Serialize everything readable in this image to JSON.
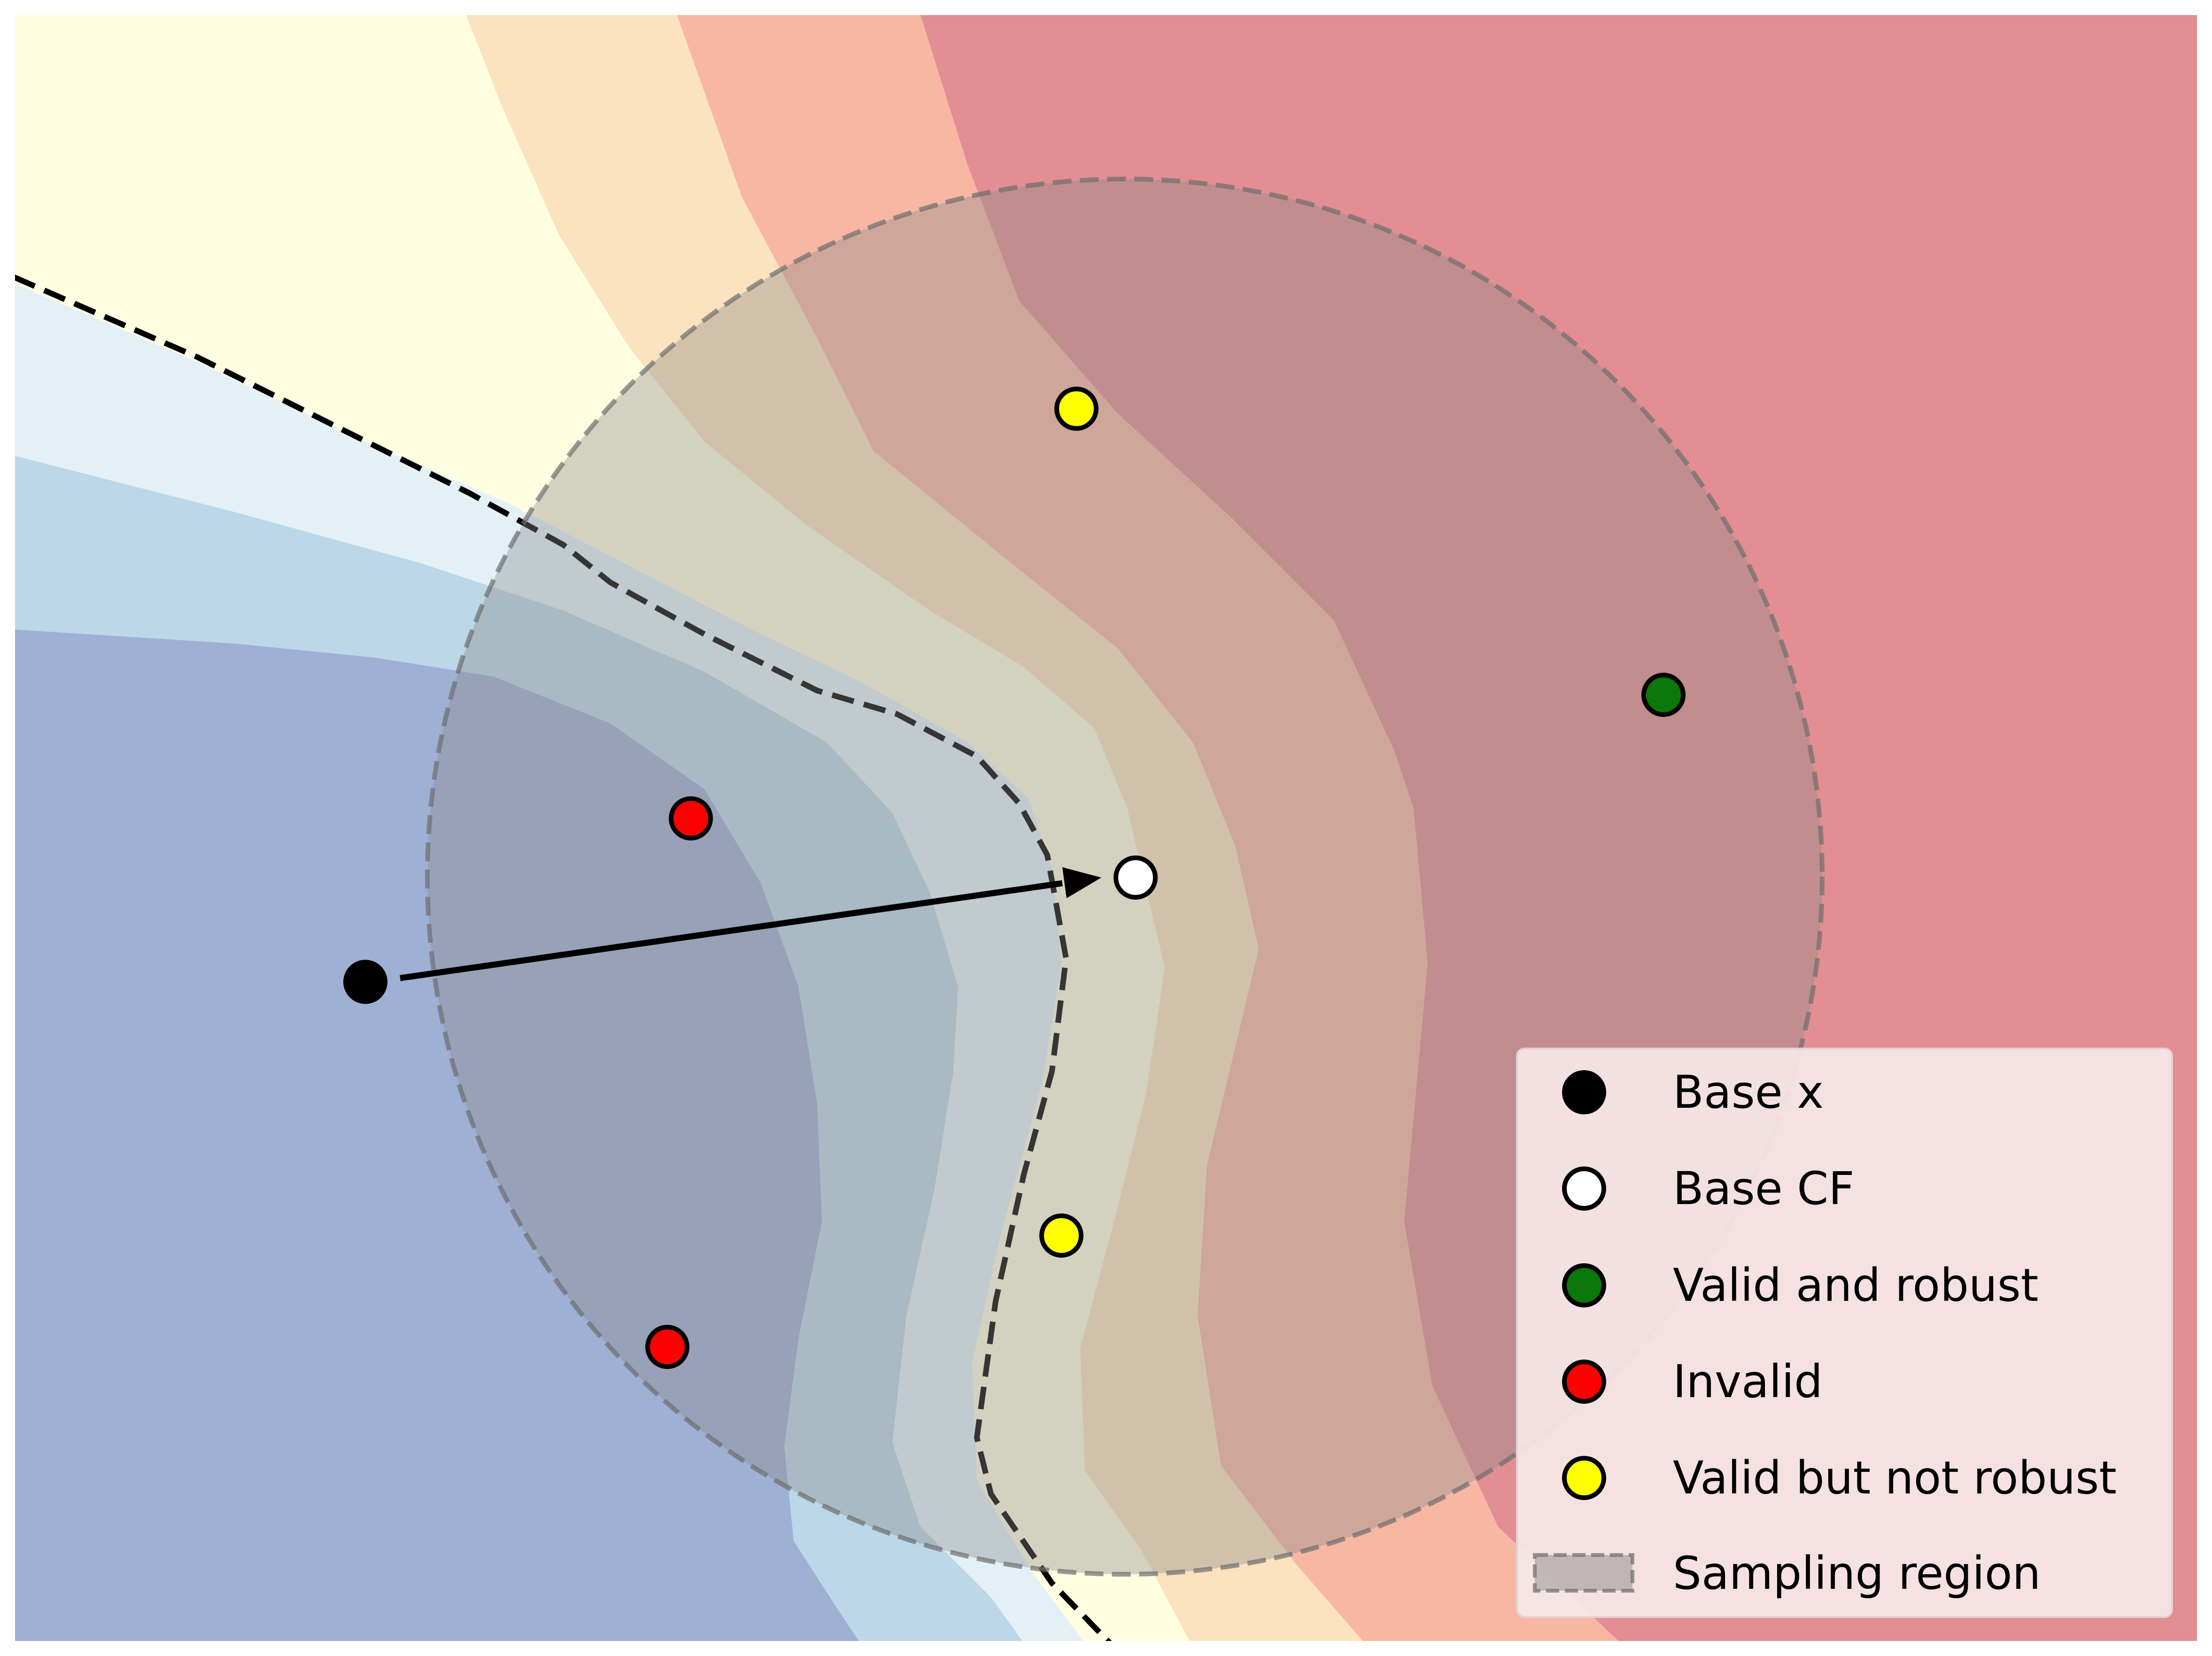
{
  "colors": {
    "region_1": "#9fb0d5",
    "region_2": "#bcd7e7",
    "region_3": "#e3f1f7",
    "region_4": "#fffee1",
    "region_5": "#fce3bf",
    "region_6": "#f8b7a3",
    "region_7": "#e38e92",
    "sampling_region": "#8c8c8c",
    "base_x": "#000000",
    "base_cf": "#ffffff",
    "valid_and_robust": "#0a780a",
    "invalid": "#ff0000",
    "valid_but_not_robust": "#ffff00"
  },
  "legend": {
    "base_x": "Base x",
    "base_cf": "Base CF",
    "valid_and_robust": "Valid and robust",
    "invalid": "Invalid",
    "valid_but_not_robust": "Valid but not robust",
    "sampling_region": "Sampling region"
  }
}
